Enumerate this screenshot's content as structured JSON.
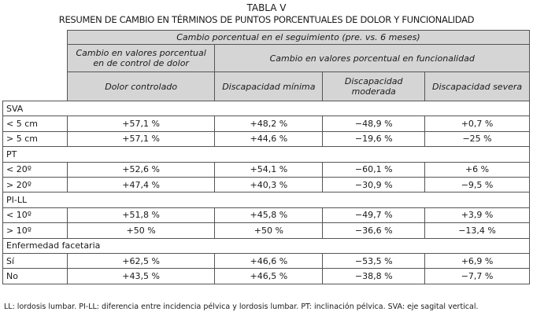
{
  "title": "TABLA V",
  "subtitle": "RESUMEN DE CAMBIO EN TÉRMINOS DE PUNTOS PORCENTUALES DE DOLOR Y FUNCIONALIDAD",
  "header": {
    "top": "Cambio porcentual en el seguimiento (pre. vs. 6 meses)",
    "pain_group": "Cambio en valores porcentual en de control de dolor",
    "function_group": "Cambio en valores porcentual en  funcionalidad",
    "columns": [
      "Dolor controlado",
      "Discapacidad mínima",
      "Discapacidad moderada",
      "Discapacidad severa"
    ]
  },
  "groups": [
    {
      "label": "SVA",
      "rows": [
        {
          "label": "< 5 cm",
          "values": [
            "+57,1 %",
            "+48,2 %",
            "−48,9 %",
            "+0,7 %"
          ]
        },
        {
          "label": "> 5 cm",
          "values": [
            "+57,1 %",
            "+44,6 %",
            "−19,6 %",
            "−25 %"
          ]
        }
      ]
    },
    {
      "label": "PT",
      "rows": [
        {
          "label": "< 20º",
          "values": [
            "+52,6 %",
            "+54,1 %",
            "−60,1 %",
            "+6 %"
          ]
        },
        {
          "label": "> 20º",
          "values": [
            "+47,4 %",
            "+40,3 %",
            "−30,9 %",
            "−9,5 %"
          ]
        }
      ]
    },
    {
      "label": "PI-LL",
      "rows": [
        {
          "label": "< 10º",
          "values": [
            "+51,8 %",
            "+45,8 %",
            "−49,7 %",
            "+3,9 %"
          ]
        },
        {
          "label": "> 10º",
          "values": [
            "+50 %",
            "+50 %",
            "−36,6 %",
            "−13,4 %"
          ]
        }
      ]
    },
    {
      "label": "Enfermedad facetaria",
      "rows": [
        {
          "label": "Sí",
          "values": [
            "+62,5 %",
            "+46,6 %",
            "−53,5 %",
            "+6,9 %"
          ]
        },
        {
          "label": "No",
          "values": [
            "+43,5 %",
            "+46,5 %",
            "−38,8 %",
            "−7,7 %"
          ]
        }
      ]
    }
  ],
  "footnote": "LL: lordosis lumbar. PI-LL: diferencia entre incidencia pélvica y lordosis lumbar. PT: inclinación pélvica. SVA: eje sagital vertical.",
  "colors": {
    "header_bg": "#d5d5d5",
    "border": "#555555"
  }
}
